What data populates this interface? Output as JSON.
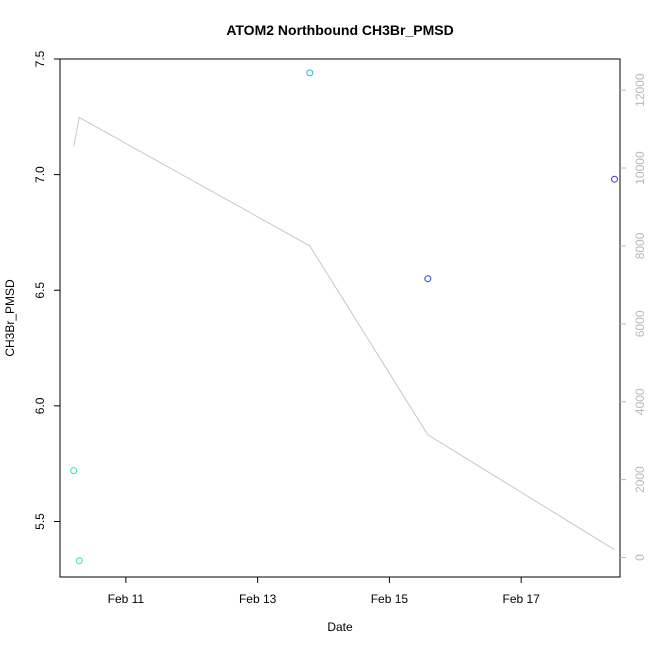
{
  "chart_data": {
    "type": "scatter",
    "title": "ATOM2 Northbound CH3Br_PMSD",
    "xlabel": "Date",
    "ylabel": "CH3Br_PMSD",
    "x_axis": {
      "type": "date",
      "range": [
        "2017-02-10T00:00",
        "2017-02-18T12:00"
      ],
      "ticks": [
        {
          "value": "2017-02-11",
          "label": "Feb 11"
        },
        {
          "value": "2017-02-13",
          "label": "Feb 13"
        },
        {
          "value": "2017-02-15",
          "label": "Feb 15"
        },
        {
          "value": "2017-02-17",
          "label": "Feb 17"
        }
      ]
    },
    "y_axis": {
      "range": [
        5.26,
        7.5
      ],
      "ticks": [
        {
          "value": 5.5,
          "label": "5.5"
        },
        {
          "value": 6.0,
          "label": "6.0"
        },
        {
          "value": 6.5,
          "label": "6.5"
        },
        {
          "value": 7.0,
          "label": "7.0"
        },
        {
          "value": 7.5,
          "label": "7.5"
        }
      ]
    },
    "y2_axis": {
      "range": [
        -500,
        12800
      ],
      "color": "#b8b8b8",
      "ticks": [
        {
          "value": 0,
          "label": "0"
        },
        {
          "value": 2000,
          "label": "2000"
        },
        {
          "value": 4000,
          "label": "4000"
        },
        {
          "value": 6000,
          "label": "6000"
        },
        {
          "value": 8000,
          "label": "8000"
        },
        {
          "value": 10000,
          "label": "10000"
        },
        {
          "value": 12000,
          "label": "12000"
        }
      ]
    },
    "points": [
      {
        "x": "2017-02-10T05:00",
        "y": 5.72,
        "color": "#2de8b0"
      },
      {
        "x": "2017-02-10T07:00",
        "y": 5.33,
        "color": "#2de8b0"
      },
      {
        "x": "2017-02-13T19:00",
        "y": 7.44,
        "color": "#22b8e8"
      },
      {
        "x": "2017-02-15T14:00",
        "y": 6.55,
        "color": "#2244e8"
      },
      {
        "x": "2017-02-18T10:00",
        "y": 6.98,
        "color": "#5522e0"
      }
    ],
    "line_series": {
      "axis": "right",
      "color": "#c8c8c8",
      "points": [
        {
          "x": "2017-02-10T05:00",
          "y": 10550
        },
        {
          "x": "2017-02-10T07:00",
          "y": 11300
        },
        {
          "x": "2017-02-13T19:00",
          "y": 8000
        },
        {
          "x": "2017-02-15T14:00",
          "y": 3150
        },
        {
          "x": "2017-02-18T10:00",
          "y": 200
        }
      ]
    },
    "grid": false,
    "legend": "none"
  }
}
